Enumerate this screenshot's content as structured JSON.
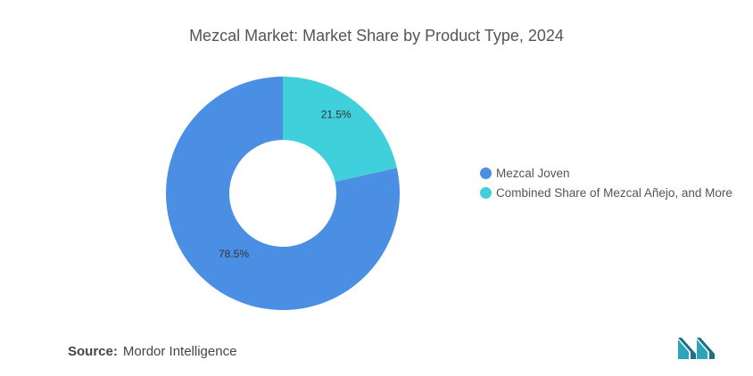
{
  "chart_data": {
    "type": "pie",
    "title": "Mezcal Market: Market Share by Product Type, 2024",
    "categories": [
      "Mezcal Joven",
      "Combined Share of Mezcal Añejo, and More"
    ],
    "values": [
      78.5,
      21.5
    ],
    "data_labels": [
      "78.5%",
      "21.5%"
    ],
    "colors": [
      "#4a8fe4",
      "#3fd0dc"
    ],
    "legend_position": "right",
    "donut": true
  },
  "source": {
    "label": "Source:",
    "text": "Mordor Intelligence"
  },
  "logo": {
    "icon": "mordor-intelligence-logo",
    "colors": [
      "#2a9fb0",
      "#1f5f7a"
    ]
  }
}
